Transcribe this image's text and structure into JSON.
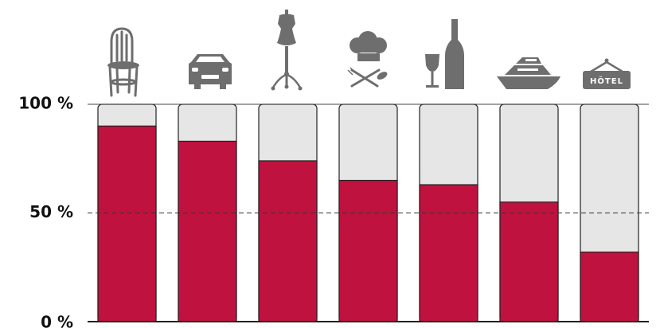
{
  "chart_data": {
    "type": "bar",
    "stacked_to_100": true,
    "categories": [
      "chair",
      "car",
      "fashion",
      "restaurant",
      "wine",
      "yacht",
      "hotel"
    ],
    "values": [
      90,
      83,
      74,
      65,
      63,
      55,
      32
    ],
    "ylim": [
      0,
      100
    ],
    "yticks": [
      {
        "value": 100,
        "label": "100 %"
      },
      {
        "value": 50,
        "label": "50 %"
      },
      {
        "value": 0,
        "label": "0 %"
      }
    ],
    "reference_line": {
      "value": 50,
      "style": "dashed"
    },
    "grid": false,
    "legend": "none",
    "category_icons": [
      "chair-icon",
      "car-icon",
      "dress-form-icon",
      "chef-hat-cutlery-icon",
      "wine-bottle-glass-icon",
      "yacht-icon",
      "hotel-sign-icon"
    ],
    "hotel_sign_text": "HÔTEL",
    "colors": {
      "value_fill": "#c0123e",
      "remainder_fill": "#e6e6e6",
      "outline": "#222222",
      "icon": "#6e6e6e"
    }
  }
}
